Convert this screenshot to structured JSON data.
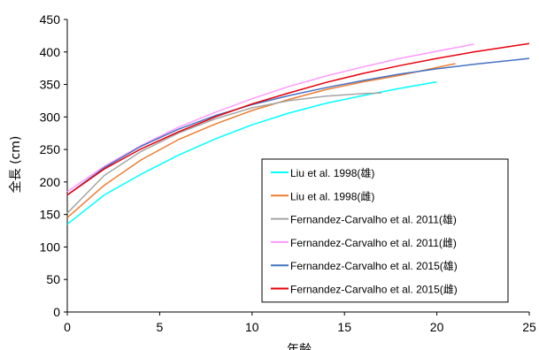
{
  "chart_data": {
    "type": "line",
    "xlabel": "年齢",
    "ylabel": "全長 (cm)",
    "xlim": [
      0,
      25
    ],
    "ylim": [
      0,
      450
    ],
    "xticks": [
      0,
      5,
      10,
      15,
      20,
      25
    ],
    "yticks": [
      0,
      50,
      100,
      150,
      200,
      250,
      300,
      350,
      400,
      450
    ],
    "grid": false,
    "legend_position": "right-inside",
    "series": [
      {
        "name": "Liu et al. 1998(雄)",
        "color": "#00ffff",
        "x": [
          0,
          2,
          4,
          6,
          8,
          10,
          12,
          14,
          16,
          18,
          20
        ],
        "y": [
          135,
          180,
          212,
          241,
          266,
          288,
          306,
          321,
          333,
          344,
          354
        ]
      },
      {
        "name": "Liu et al. 1998(雌)",
        "color": "#ed7d31",
        "x": [
          0,
          2,
          4,
          6,
          8,
          10,
          12,
          14,
          16,
          18,
          20,
          21
        ],
        "y": [
          145,
          195,
          234,
          265,
          289,
          310,
          327,
          342,
          354,
          364,
          376,
          382
        ]
      },
      {
        "name": "Fernandez-Carvalho et al. 2011(雄)",
        "color": "#a5a5a5",
        "x": [
          0,
          2,
          4,
          6,
          8,
          10,
          12,
          14,
          16,
          17
        ],
        "y": [
          152,
          210,
          247,
          275,
          297,
          314,
          325,
          332,
          336,
          337
        ]
      },
      {
        "name": "Fernandez-Carvalho et al. 2011(雌)",
        "color": "#ff99ff",
        "x": [
          0,
          2,
          4,
          6,
          8,
          10,
          12,
          14,
          16,
          18,
          20,
          22
        ],
        "y": [
          185,
          224,
          256,
          284,
          307,
          328,
          347,
          363,
          377,
          390,
          401,
          412
        ]
      },
      {
        "name": "Fernandez-Carvalho et al. 2015(雄)",
        "color": "#4472c4",
        "x": [
          0,
          2,
          4,
          6,
          8,
          10,
          12,
          14,
          16,
          18,
          20,
          22,
          25
        ],
        "y": [
          180,
          222,
          255,
          281,
          302,
          319,
          333,
          345,
          356,
          366,
          374,
          381,
          390
        ]
      },
      {
        "name": "Fernandez-Carvalho et al. 2015(雌)",
        "color": "#e8000b",
        "x": [
          0,
          2,
          4,
          6,
          8,
          10,
          12,
          14,
          16,
          18,
          20,
          22,
          25
        ],
        "y": [
          180,
          220,
          251,
          277,
          300,
          320,
          337,
          353,
          367,
          379,
          390,
          400,
          413
        ]
      }
    ]
  }
}
